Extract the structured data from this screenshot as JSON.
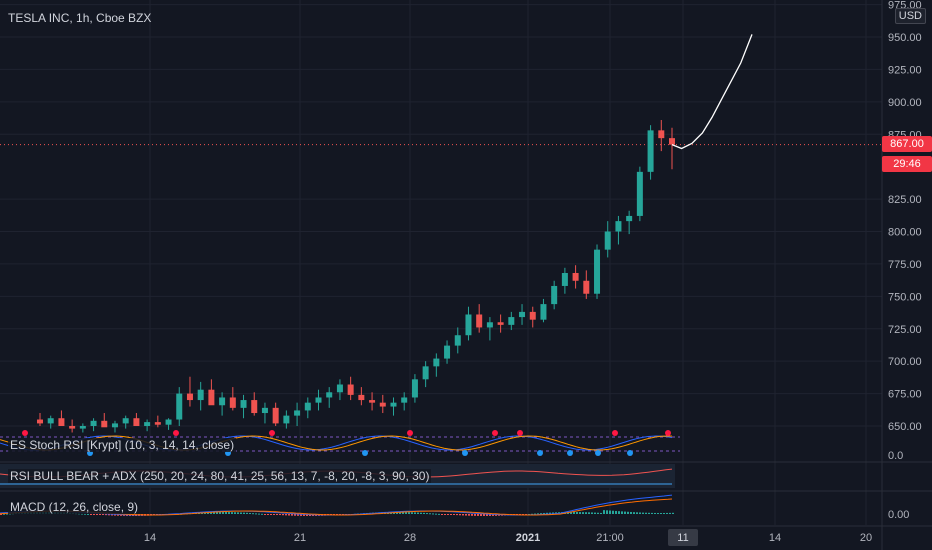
{
  "header": {
    "title": "TESLA INC, 1h, Cboe BZX",
    "currency": "USD"
  },
  "price_axis": {
    "ticks": [
      "975.00",
      "950.00",
      "925.00",
      "900.00",
      "875.00",
      "825.00",
      "800.00",
      "775.00",
      "750.00",
      "725.00",
      "700.00",
      "675.00",
      "650.00"
    ],
    "current_price": "867.00",
    "countdown": "29:46"
  },
  "time_axis": {
    "ticks": [
      "14",
      "21",
      "28",
      "2021",
      "21:00",
      "11",
      "14",
      "20"
    ]
  },
  "indicators": {
    "stoch_rsi": {
      "label": "ES Stoch RSI [Krypt] (10, 3, 14, 14, close)",
      "axis_value": "0.0"
    },
    "rsi_bull_bear": {
      "label": "RSI BULL BEAR + ADX (250, 20, 24, 80, 41, 25, 56, 13, 7, -8, 20, -8, 3, 90, 30)"
    },
    "macd": {
      "label": "MACD (12, 26, close, 9)",
      "axis_value": "0.00"
    }
  },
  "colors": {
    "background": "#131722",
    "up": "#26a69a",
    "down": "#ef5350",
    "projection": "#ffffff",
    "price_tag": "#f23645"
  },
  "chart_data": {
    "type": "candlestick",
    "title": "TESLA INC, 1h, Cboe BZX",
    "ylim": [
      645,
      980
    ],
    "candles": [
      [
        655,
        660,
        650,
        652
      ],
      [
        652,
        658,
        648,
        656
      ],
      [
        656,
        662,
        652,
        650
      ],
      [
        650,
        655,
        645,
        648
      ],
      [
        648,
        652,
        645,
        650
      ],
      [
        650,
        656,
        646,
        654
      ],
      [
        654,
        660,
        650,
        649
      ],
      [
        649,
        654,
        645,
        652
      ],
      [
        652,
        658,
        648,
        656
      ],
      [
        656,
        660,
        652,
        650
      ],
      [
        650,
        655,
        646,
        653
      ],
      [
        653,
        658,
        649,
        651
      ],
      [
        651,
        656,
        647,
        655
      ],
      [
        655,
        680,
        650,
        675
      ],
      [
        675,
        688,
        665,
        670
      ],
      [
        670,
        684,
        662,
        678
      ],
      [
        678,
        686,
        668,
        666
      ],
      [
        666,
        676,
        658,
        672
      ],
      [
        672,
        680,
        662,
        664
      ],
      [
        664,
        674,
        656,
        670
      ],
      [
        670,
        676,
        658,
        660
      ],
      [
        660,
        668,
        652,
        664
      ],
      [
        664,
        668,
        650,
        652
      ],
      [
        652,
        662,
        648,
        658
      ],
      [
        658,
        668,
        650,
        662
      ],
      [
        662,
        672,
        656,
        668
      ],
      [
        668,
        678,
        662,
        672
      ],
      [
        672,
        680,
        664,
        676
      ],
      [
        676,
        686,
        670,
        682
      ],
      [
        682,
        688,
        670,
        674
      ],
      [
        674,
        680,
        666,
        670
      ],
      [
        670,
        676,
        662,
        668
      ],
      [
        668,
        674,
        660,
        665
      ],
      [
        665,
        672,
        658,
        668
      ],
      [
        668,
        676,
        662,
        672
      ],
      [
        672,
        690,
        668,
        686
      ],
      [
        686,
        700,
        680,
        696
      ],
      [
        696,
        706,
        688,
        702
      ],
      [
        702,
        716,
        698,
        712
      ],
      [
        712,
        726,
        706,
        720
      ],
      [
        720,
        742,
        716,
        736
      ],
      [
        736,
        744,
        722,
        726
      ],
      [
        726,
        734,
        716,
        730
      ],
      [
        730,
        736,
        722,
        728
      ],
      [
        728,
        738,
        724,
        734
      ],
      [
        734,
        744,
        728,
        738
      ],
      [
        738,
        742,
        726,
        732
      ],
      [
        732,
        748,
        730,
        744
      ],
      [
        744,
        762,
        740,
        758
      ],
      [
        758,
        772,
        752,
        768
      ],
      [
        768,
        774,
        756,
        762
      ],
      [
        762,
        770,
        748,
        752
      ],
      [
        752,
        790,
        748,
        786
      ],
      [
        786,
        808,
        780,
        800
      ],
      [
        800,
        812,
        790,
        808
      ],
      [
        808,
        816,
        798,
        812
      ],
      [
        812,
        850,
        808,
        846
      ],
      [
        846,
        882,
        840,
        878
      ],
      [
        878,
        886,
        862,
        872
      ],
      [
        872,
        880,
        848,
        867
      ]
    ],
    "projection": [
      [
        0,
        867
      ],
      [
        0.12,
        864
      ],
      [
        0.25,
        868
      ],
      [
        0.38,
        876
      ],
      [
        0.5,
        888
      ],
      [
        0.62,
        902
      ],
      [
        0.74,
        916
      ],
      [
        0.86,
        930
      ],
      [
        1,
        952
      ]
    ],
    "current_price": 867
  }
}
